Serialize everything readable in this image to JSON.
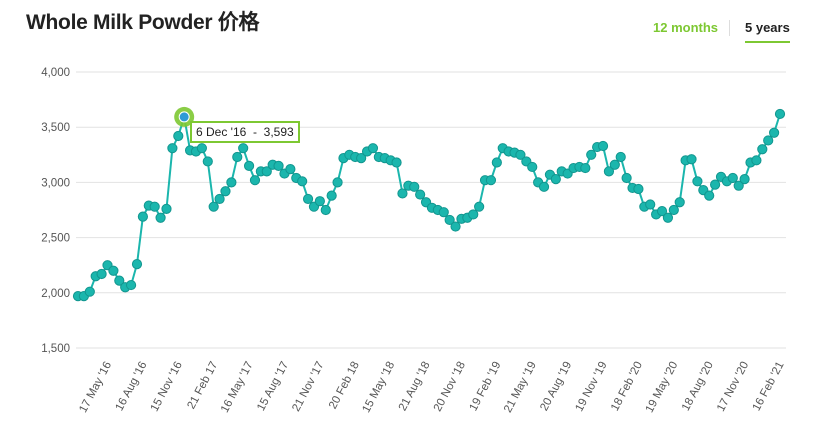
{
  "header": {
    "title": "Whole Milk Powder 价格",
    "tabs": [
      "12 months",
      "5 years"
    ]
  },
  "chart_data": {
    "type": "line",
    "color": "#1bb6ad",
    "grid": true,
    "tooltip": "6 Dec '16  -  3,593",
    "ylim": [
      1500,
      4000
    ],
    "yticks": [
      {
        "value": 1500,
        "label": "1,500"
      },
      {
        "value": 2000,
        "label": "2,000"
      },
      {
        "value": 2500,
        "label": "2,500"
      },
      {
        "value": 3000,
        "label": "3,000"
      },
      {
        "value": 3500,
        "label": "3,500"
      },
      {
        "value": 4000,
        "label": "4,000"
      }
    ],
    "categories": [
      null,
      null,
      null,
      null,
      null,
      "17 May '16",
      null,
      null,
      null,
      null,
      null,
      "16 Aug '16",
      null,
      null,
      null,
      null,
      null,
      "15 Nov '16",
      null,
      null,
      null,
      null,
      null,
      "21 Feb 17",
      null,
      null,
      null,
      null,
      null,
      "16 May '17",
      null,
      null,
      null,
      null,
      null,
      "15 Aug '17",
      null,
      null,
      null,
      null,
      null,
      "21 Nov '17",
      null,
      null,
      null,
      null,
      null,
      "20 Feb 18",
      null,
      null,
      null,
      null,
      null,
      "15 May '18",
      null,
      null,
      null,
      null,
      null,
      "21 Aug '18",
      null,
      null,
      null,
      null,
      null,
      "20 Nov '18",
      null,
      null,
      null,
      null,
      null,
      "19 Feb '19",
      null,
      null,
      null,
      null,
      null,
      "21 May '19",
      null,
      null,
      null,
      null,
      null,
      "20 Aug '19",
      null,
      null,
      null,
      null,
      null,
      "19 Nov '19",
      null,
      null,
      null,
      null,
      null,
      "18 Feb '20",
      null,
      null,
      null,
      null,
      null,
      "19 May '20",
      null,
      null,
      null,
      null,
      null,
      "18 Aug '20",
      null,
      null,
      null,
      null,
      null,
      "17 Nov '20",
      null,
      null,
      null,
      null,
      null,
      "16 Feb '21"
    ],
    "values": [
      1970,
      1970,
      2010,
      2150,
      2170,
      2250,
      2200,
      2110,
      2050,
      2070,
      2260,
      2690,
      2790,
      2780,
      2680,
      2760,
      3310,
      3420,
      3593,
      3290,
      3280,
      3310,
      3190,
      2780,
      2850,
      2920,
      3000,
      3230,
      3310,
      3150,
      3020,
      3100,
      3100,
      3160,
      3150,
      3080,
      3120,
      3040,
      3010,
      2850,
      2780,
      2830,
      2750,
      2880,
      3000,
      3220,
      3250,
      3230,
      3220,
      3280,
      3310,
      3230,
      3220,
      3200,
      3180,
      2900,
      2970,
      2960,
      2890,
      2820,
      2770,
      2750,
      2730,
      2660,
      2600,
      2670,
      2680,
      2710,
      2780,
      3020,
      3020,
      3180,
      3310,
      3280,
      3270,
      3250,
      3190,
      3140,
      3000,
      2960,
      3070,
      3030,
      3100,
      3080,
      3130,
      3140,
      3130,
      3250,
      3320,
      3330,
      3100,
      3160,
      3230,
      3040,
      2950,
      2940,
      2780,
      2800,
      2710,
      2740,
      2680,
      2750,
      2820,
      3200,
      3210,
      3010,
      2930,
      2880,
      2980,
      3050,
      3010,
      3040,
      2970,
      3030,
      3180,
      3200,
      3300,
      3380,
      3450,
      3620
    ]
  }
}
